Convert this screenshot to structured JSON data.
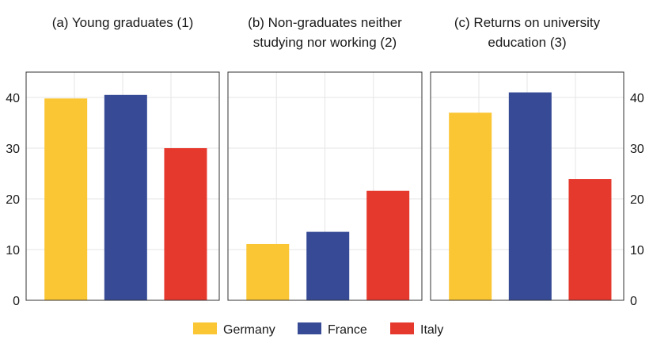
{
  "chart_data": {
    "type": "bar",
    "legend": {
      "placement": "bottom",
      "items": [
        {
          "name": "Germany",
          "color": "#FBC634"
        },
        {
          "name": "France",
          "color": "#364A96"
        },
        {
          "name": "Italy",
          "color": "#E6392E"
        }
      ]
    },
    "ylim": [
      0,
      45
    ],
    "yticks": [
      0,
      10,
      20,
      30,
      40
    ],
    "grid": true,
    "panels": [
      {
        "title_lines": [
          "(a) Young graduates (1)"
        ],
        "values": [
          39.8,
          40.5,
          30.0
        ],
        "tick_side": "left"
      },
      {
        "title_lines": [
          "(b) Non-graduates neither",
          "studying nor working (2)"
        ],
        "values": [
          11.1,
          13.5,
          21.6
        ],
        "tick_side": "none"
      },
      {
        "title_lines": [
          "(c) Returns on university",
          "education (3)"
        ],
        "values": [
          37.0,
          41.0,
          23.9
        ],
        "tick_side": "right"
      }
    ]
  }
}
